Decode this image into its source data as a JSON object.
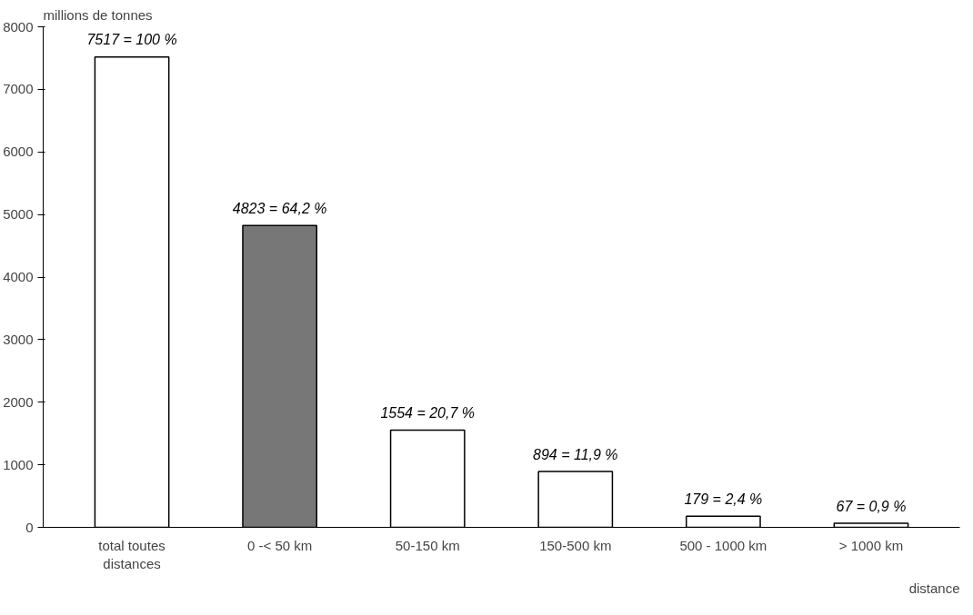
{
  "chart_data": {
    "type": "bar",
    "ylabel": "millions de tonnes",
    "xlabel": "distance",
    "categories": [
      "total toutes distances",
      "0 -< 50 km",
      "50-150 km",
      "150-500 km",
      "500 - 1000 km",
      "> 1000 km"
    ],
    "values": [
      7517,
      4823,
      1554,
      894,
      179,
      67
    ],
    "value_labels": [
      "7517 = 100 %",
      "4823 = 64,2 %",
      "1554 = 20,7 %",
      "894 = 11,9 %",
      "179 = 2,4 %",
      "67 = 0,9 %"
    ],
    "colors": [
      "#ffffff",
      "#777777",
      "#ffffff",
      "#ffffff",
      "#ffffff",
      "#ffffff"
    ],
    "ylim": [
      0,
      8000
    ],
    "yticks": [
      0,
      1000,
      2000,
      3000,
      4000,
      5000,
      6000,
      7000,
      8000
    ],
    "grid": false
  }
}
